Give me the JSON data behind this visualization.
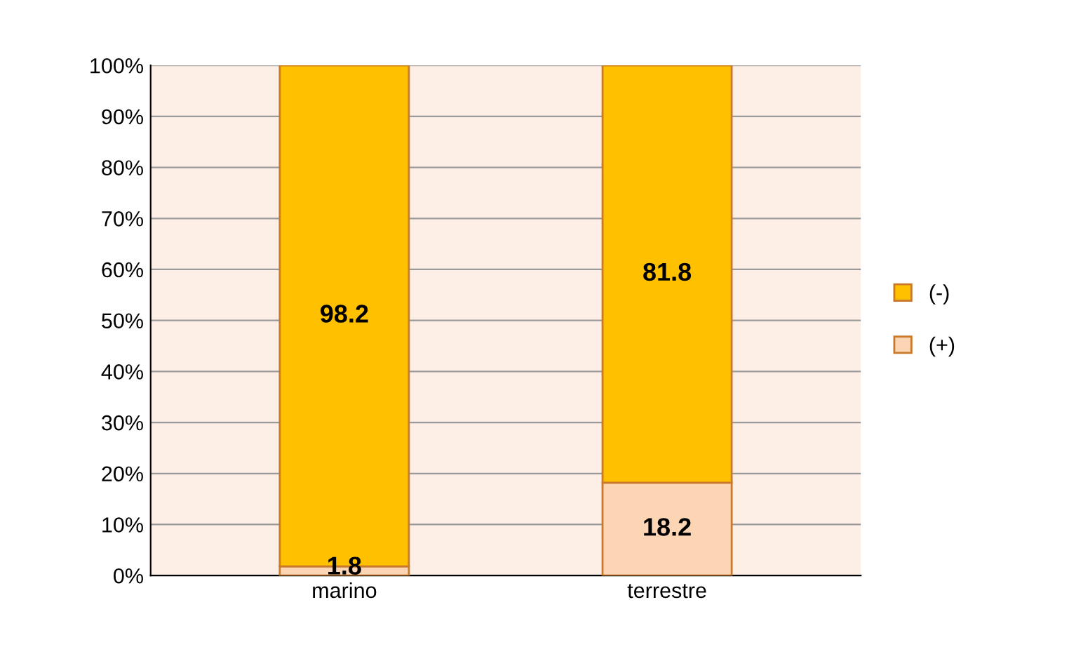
{
  "chart_data": {
    "type": "bar",
    "stacked": true,
    "categories": [
      "marino",
      "terrestre"
    ],
    "series": [
      {
        "name": "(+)",
        "color": "#fcd5b5",
        "values": [
          1.8,
          18.2
        ]
      },
      {
        "name": "(-)",
        "color": "#ffc000",
        "values": [
          98.2,
          81.8
        ]
      }
    ],
    "ylim": [
      0,
      100
    ],
    "yticks": [
      {
        "value": 0,
        "label": "0%"
      },
      {
        "value": 10,
        "label": "10%"
      },
      {
        "value": 20,
        "label": "20%"
      },
      {
        "value": 30,
        "label": "30%"
      },
      {
        "value": 40,
        "label": "40%"
      },
      {
        "value": 50,
        "label": "50%"
      },
      {
        "value": 60,
        "label": "60%"
      },
      {
        "value": 70,
        "label": "70%"
      },
      {
        "value": 80,
        "label": "80%"
      },
      {
        "value": 90,
        "label": "90%"
      },
      {
        "value": 100,
        "label": "100%"
      }
    ],
    "grid": "y",
    "legend": "right",
    "data_labels": true
  }
}
